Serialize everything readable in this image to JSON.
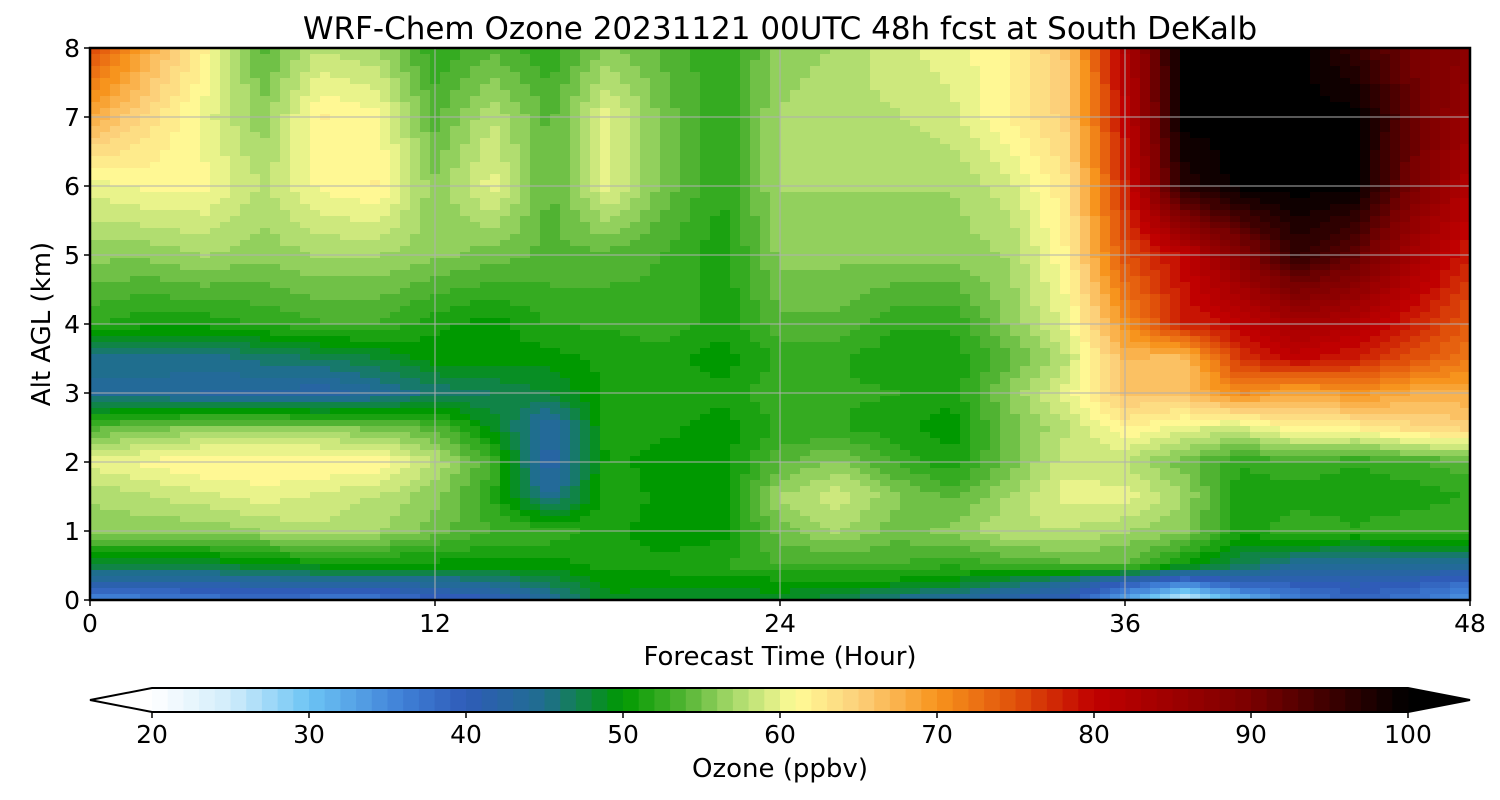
{
  "chart_data": {
    "type": "heatmap",
    "title": "WRF-Chem Ozone  20231121 00UTC 48h fcst at South DeKalb",
    "xlabel": "Forecast Time (Hour)",
    "ylabel": "Alt AGL (km)",
    "xlim": [
      0,
      48
    ],
    "ylim": [
      0,
      8
    ],
    "x_ticks": [
      "0",
      "12",
      "24",
      "36",
      "48"
    ],
    "y_ticks": [
      "0",
      "1",
      "2",
      "3",
      "4",
      "5",
      "6",
      "7",
      "8"
    ],
    "grid": true,
    "colorbar": {
      "label": "Ozone  (ppbv)",
      "range": [
        20,
        100
      ],
      "ticks": [
        "20",
        "30",
        "40",
        "50",
        "60",
        "70",
        "80",
        "90",
        "100"
      ],
      "extend": "both",
      "colors": [
        "#ffffff",
        "#d0ecfb",
        "#6cc4f4",
        "#3f7fd6",
        "#2f5cb8",
        "#1f6e8e",
        "#009900",
        "#55b535",
        "#a6d96a",
        "#fffb96",
        "#fcd07a",
        "#f7941d",
        "#e0500a",
        "#c00000",
        "#7a0000",
        "#000000"
      ],
      "color_stops": [
        20,
        25,
        30,
        36,
        40,
        45,
        50,
        54,
        57,
        61,
        65,
        70,
        75,
        80,
        90,
        100
      ]
    },
    "x_hours": [
      0,
      2,
      4,
      6,
      8,
      10,
      12,
      14,
      16,
      18,
      20,
      22,
      24,
      26,
      28,
      30,
      32,
      34,
      36,
      38,
      40,
      42,
      44,
      46,
      48
    ],
    "altitudes_km": [
      0,
      0.25,
      0.5,
      1.0,
      1.5,
      2.0,
      2.5,
      3.0,
      3.5,
      4.0,
      5.0,
      6.0,
      7.0,
      8.0
    ],
    "values_ppbv": [
      [
        35,
        36,
        37,
        38,
        37,
        37,
        39,
        40,
        44,
        49,
        48,
        48,
        49,
        47,
        45,
        43,
        41,
        40,
        33,
        24,
        31,
        36,
        39,
        37,
        34
      ],
      [
        42,
        42,
        42,
        43,
        43,
        43,
        44,
        45,
        47,
        50,
        50,
        50,
        50,
        50,
        50,
        49,
        47,
        44,
        40,
        36,
        40,
        40,
        41,
        40,
        38
      ],
      [
        48,
        48,
        48,
        49,
        50,
        50,
        50,
        50,
        50,
        51,
        51,
        52,
        53,
        53,
        53,
        52,
        53,
        54,
        54,
        50,
        47,
        44,
        44,
        44,
        44
      ],
      [
        56,
        56,
        56,
        57,
        58,
        57,
        55,
        53,
        53,
        51,
        50,
        50,
        55,
        57,
        55,
        56,
        58,
        58,
        57,
        56,
        51,
        53,
        52,
        53,
        53
      ],
      [
        57,
        58,
        59,
        60,
        59,
        58,
        56,
        52,
        44,
        52,
        50,
        50,
        57,
        59,
        56,
        54,
        57,
        60,
        60,
        57,
        51,
        51,
        51,
        51,
        52
      ],
      [
        60,
        61,
        62,
        62,
        62,
        62,
        58,
        53,
        42,
        51,
        50,
        50,
        54,
        56,
        53,
        51,
        55,
        59,
        58,
        55,
        52,
        53,
        52,
        53,
        54
      ],
      [
        54,
        55,
        56,
        56,
        56,
        55,
        54,
        49,
        43,
        51,
        51,
        50,
        52,
        52,
        51,
        50,
        55,
        58,
        62,
        60,
        59,
        62,
        62,
        64,
        65
      ],
      [
        44,
        44,
        43,
        43,
        42,
        44,
        46,
        47,
        48,
        51,
        51,
        51,
        53,
        52,
        52,
        51,
        56,
        60,
        66,
        66,
        71,
        68,
        70,
        68,
        68
      ],
      [
        45,
        45,
        45,
        46,
        47,
        48,
        50,
        50,
        50,
        51,
        51,
        50,
        52,
        52,
        51,
        51,
        54,
        58,
        67,
        66,
        77,
        80,
        78,
        75,
        72
      ],
      [
        52,
        51,
        51,
        52,
        53,
        53,
        51,
        50,
        52,
        52,
        53,
        51,
        54,
        54,
        52,
        52,
        56,
        60,
        70,
        78,
        80,
        84,
        82,
        78,
        74
      ],
      [
        56,
        56,
        57,
        56,
        57,
        57,
        56,
        55,
        54,
        54,
        53,
        51,
        56,
        56,
        56,
        56,
        57,
        62,
        75,
        80,
        88,
        96,
        92,
        84,
        78
      ],
      [
        60,
        61,
        61,
        58,
        61,
        62,
        56,
        60,
        54,
        60,
        55,
        52,
        57,
        57,
        57,
        57,
        59,
        63,
        78,
        97,
        100,
        100,
        100,
        90,
        82
      ],
      [
        68,
        64,
        60,
        56,
        62,
        61,
        54,
        58,
        54,
        60,
        55,
        52,
        57,
        58,
        58,
        59,
        62,
        65,
        80,
        100,
        100,
        100,
        100,
        92,
        85
      ],
      [
        76,
        68,
        62,
        54,
        58,
        57,
        52,
        54,
        52,
        56,
        54,
        52,
        56,
        57,
        59,
        60,
        62,
        66,
        82,
        100,
        100,
        100,
        96,
        90,
        88
      ]
    ]
  }
}
